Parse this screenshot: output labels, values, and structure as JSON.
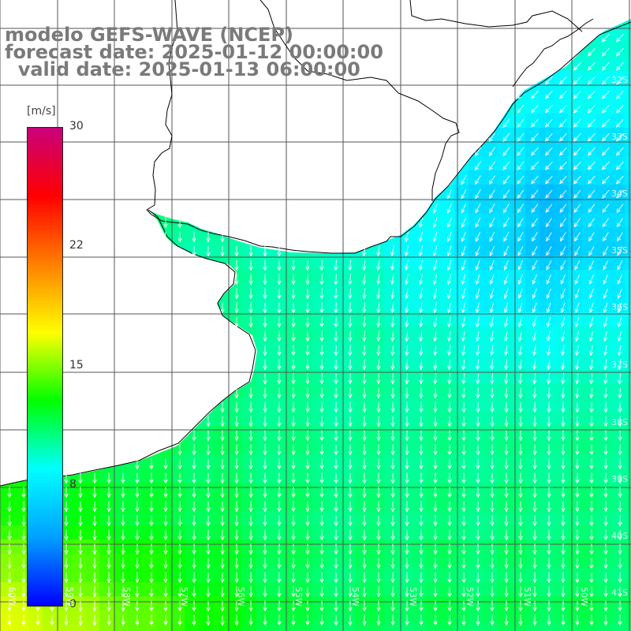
{
  "title": {
    "line1": "modelo GEFS-WAVE (NCEP)",
    "line2": "forecast date: 2025-01-12 00:00:00",
    "line3": "  valid date: 2025-01-13 06:00:00"
  },
  "colorbar": {
    "unit": "[m/s]",
    "ticks": [
      "30",
      "22",
      "15",
      "8",
      "0"
    ],
    "tick_values": [
      30,
      22,
      15,
      8,
      0
    ],
    "range": [
      0,
      30
    ],
    "colors": [
      "#0000ff",
      "#00a0ff",
      "#00ffff",
      "#00ff00",
      "#ffff00",
      "#ff8000",
      "#ff0000",
      "#c8007a"
    ]
  },
  "map": {
    "land_color": "#ffffff",
    "grid_color": "#555555",
    "coast_color": "#000000",
    "arrow_color": "#ffffff",
    "lat_labels": [
      "32S",
      "33S",
      "34S",
      "35S",
      "36S",
      "37S",
      "38S",
      "39S",
      "40S",
      "41S"
    ],
    "lon_labels": [
      "60W",
      "59W",
      "58W",
      "57W",
      "56W",
      "55W",
      "54W",
      "53W",
      "52W",
      "51W",
      "50W"
    ],
    "wind_direction": "from N / NE toward S / SW",
    "speed_range_ms": [
      7,
      16
    ]
  }
}
